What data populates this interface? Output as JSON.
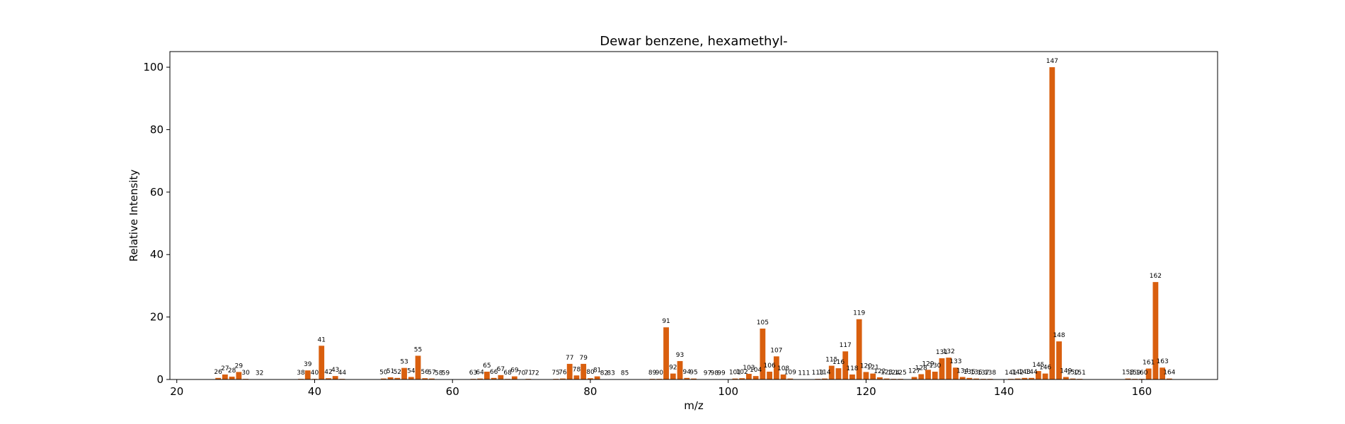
{
  "chart_data": {
    "type": "bar",
    "title": "Dewar benzene, hexamethyl-",
    "xlabel": "m/z",
    "ylabel": "Relative Intensity",
    "xlim": [
      19,
      171
    ],
    "ylim": [
      0,
      105
    ],
    "xticks": [
      20,
      40,
      60,
      80,
      100,
      120,
      140,
      160
    ],
    "yticks": [
      0,
      20,
      40,
      60,
      80,
      100
    ],
    "bar_color": "#d95f0e",
    "grid": false,
    "x": [
      26,
      27,
      28,
      29,
      30,
      32,
      38,
      39,
      40,
      41,
      42,
      43,
      44,
      50,
      51,
      52,
      53,
      54,
      55,
      56,
      57,
      58,
      59,
      63,
      64,
      65,
      66,
      67,
      68,
      69,
      70,
      71,
      72,
      75,
      76,
      77,
      78,
      79,
      80,
      81,
      82,
      83,
      85,
      89,
      90,
      91,
      92,
      93,
      94,
      95,
      97,
      98,
      99,
      101,
      102,
      103,
      104,
      105,
      106,
      107,
      108,
      109,
      111,
      113,
      114,
      115,
      116,
      117,
      118,
      119,
      120,
      121,
      122,
      123,
      124,
      125,
      127,
      128,
      129,
      130,
      131,
      132,
      133,
      134,
      135,
      136,
      137,
      138,
      141,
      142,
      143,
      144,
      145,
      146,
      147,
      148,
      149,
      150,
      151,
      158,
      159,
      160,
      161,
      162,
      163,
      164
    ],
    "values": [
      0.5,
      1.6,
      0.9,
      2.4,
      0.2,
      0.1,
      0.2,
      2.9,
      0.2,
      10.8,
      0.4,
      1.1,
      0.2,
      0.3,
      0.7,
      0.5,
      3.7,
      0.8,
      7.6,
      0.4,
      0.3,
      0.1,
      0.1,
      0.2,
      0.3,
      2.5,
      0.5,
      1.4,
      0.2,
      1.0,
      0.1,
      0.2,
      0.1,
      0.2,
      0.3,
      5.0,
      1.3,
      5.0,
      0.4,
      1.0,
      0.1,
      0.1,
      0.1,
      0.2,
      0.2,
      16.7,
      1.9,
      5.9,
      0.5,
      0.3,
      0.1,
      0.1,
      0.1,
      0.3,
      0.4,
      1.8,
      1.1,
      16.3,
      2.5,
      7.4,
      1.6,
      0.3,
      0.1,
      0.2,
      0.3,
      4.4,
      3.6,
      9.0,
      1.6,
      19.3,
      2.4,
      1.9,
      0.7,
      0.3,
      0.2,
      0.2,
      0.8,
      1.7,
      3.1,
      2.5,
      6.8,
      7.0,
      3.8,
      0.8,
      0.5,
      0.3,
      0.2,
      0.2,
      0.2,
      0.3,
      0.5,
      0.5,
      2.7,
      1.9,
      100.0,
      12.2,
      0.8,
      0.3,
      0.2,
      0.3,
      0.2,
      0.2,
      3.5,
      31.2,
      3.8,
      0.3
    ]
  }
}
